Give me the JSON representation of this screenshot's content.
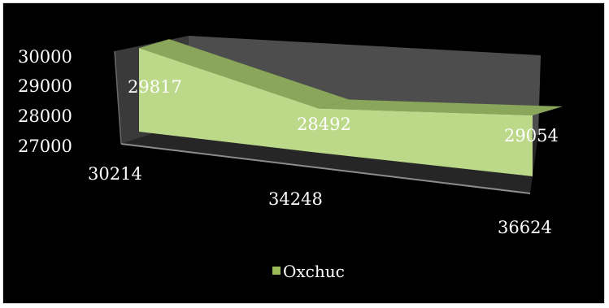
{
  "chart_data": {
    "type": "area",
    "view": "3d",
    "title": "",
    "xlabel": "",
    "ylabel": "",
    "categories": [
      "30214",
      "34248",
      "36624"
    ],
    "series": [
      {
        "name": "Oxchuc",
        "values": [
          29817,
          28492,
          29054
        ],
        "color": "#b9d87a"
      }
    ],
    "y_axis": {
      "ticks": [
        "27000",
        "28000",
        "29000",
        "30000"
      ],
      "range": [
        27000,
        30000
      ]
    },
    "legend": {
      "position": "bottom",
      "label": "Oxchuc",
      "color": "#9bbb59"
    },
    "colors": {
      "background": "#000000",
      "back_wall": "#4d4d4d",
      "side_wall": "#3c3c3c",
      "floor": "#2a2a2a",
      "area_front": "#bcd98a",
      "area_top": "#8aa65a"
    }
  }
}
